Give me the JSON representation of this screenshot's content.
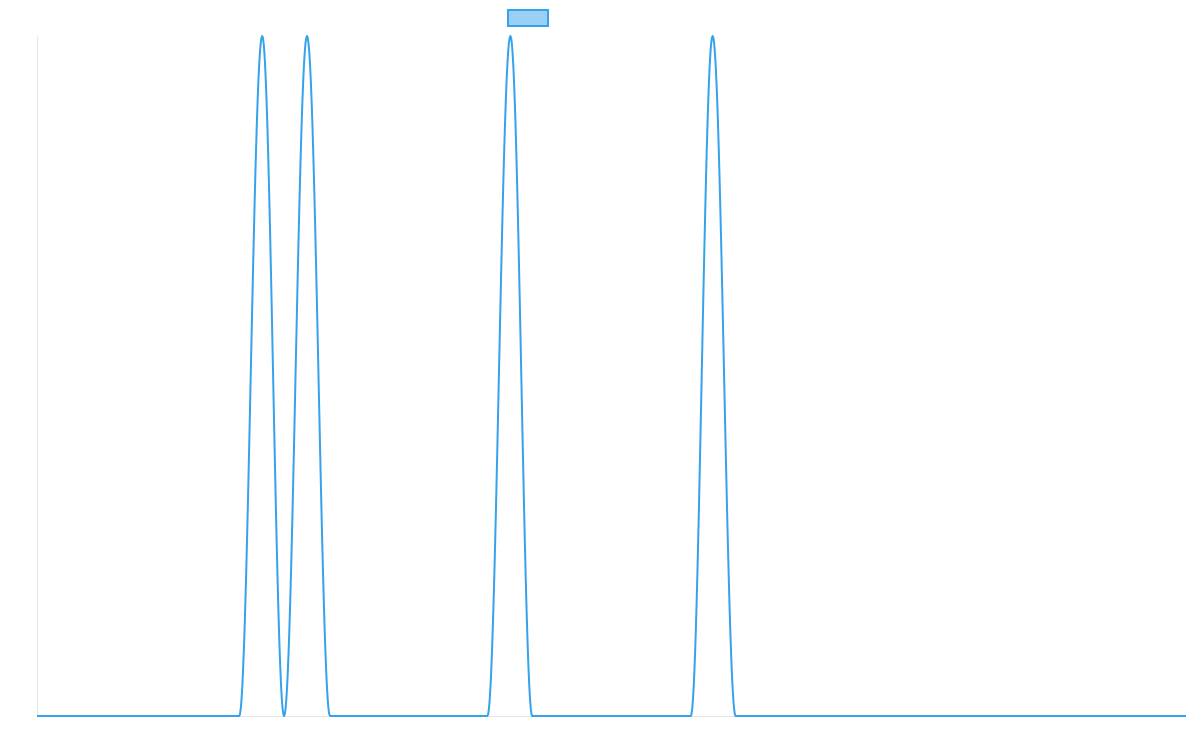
{
  "chart_data": {
    "type": "line",
    "title": "",
    "xlabel": "",
    "ylabel": "",
    "grid": false,
    "legend": {
      "placement": "top-center",
      "swatch_fill": "#9ad0f5",
      "swatch_stroke": "#36a2eb"
    },
    "xlim": [
      0,
      1
    ],
    "ylim": [
      0,
      1
    ],
    "series": [
      {
        "color": "#36a2eb",
        "x": [
          0,
          0.176,
          0.196,
          0.215,
          0.235,
          0.255,
          0.392,
          0.412,
          0.431,
          0.569,
          0.588,
          0.608,
          1
        ],
        "y": [
          0,
          0,
          1,
          0,
          1,
          0,
          0,
          1,
          0,
          0,
          1,
          0,
          0
        ]
      }
    ]
  }
}
